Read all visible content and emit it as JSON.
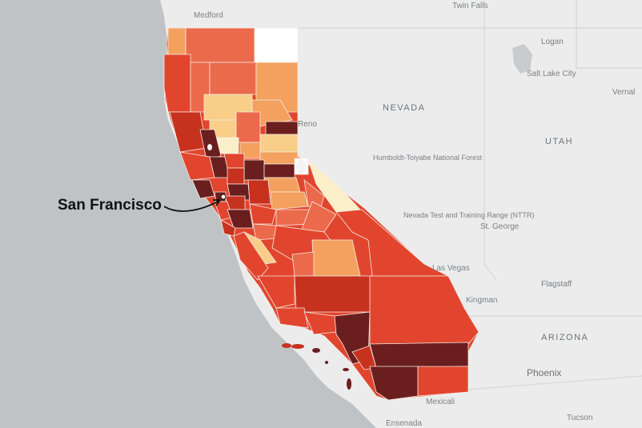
{
  "map": {
    "annotation": "San Francisco",
    "state_labels": [
      "NEVADA",
      "UTAH",
      "ARIZONA"
    ],
    "city_labels": [
      "Medford",
      "Twin Falls",
      "Logan",
      "Salt Lake City",
      "Vernal",
      "Reno",
      "Humboldt-Toiyabe National Forest",
      "Nevada Test and Training Range (NTTR)",
      "St. George",
      "Las Vegas",
      "Kingman",
      "Flagstaff",
      "Phoenix",
      "Tucson",
      "Mexicali",
      "Ensenada"
    ],
    "colors": {
      "ocean": "#bfc3c5",
      "land": "#eeeeee",
      "darkest": "#6b1e1e",
      "dark": "#c7321f",
      "red": "#e2452e",
      "orange": "#ec6a4c",
      "light_orange": "#f4a15f",
      "pale": "#f8ce88",
      "cream": "#fbefc9",
      "white": "#ffffff"
    }
  }
}
